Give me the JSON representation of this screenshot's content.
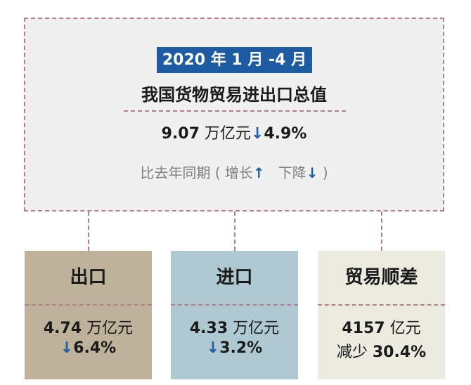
{
  "header": {
    "period": "2020 年 1 月 -4 月",
    "title": "我国货物贸易进出口总值"
  },
  "total": {
    "value": "9.07",
    "unit": "万亿元",
    "arrow": "↓",
    "change": "4.9%"
  },
  "legend": {
    "prefix": "比去年同期",
    "open": "(",
    "increase_label": "增长",
    "increase_arrow": "↑",
    "decrease_label": "下降",
    "decrease_arrow": "↓",
    "close": ")"
  },
  "cards": [
    {
      "title": "出口",
      "value": "4.74",
      "unit": "万亿元",
      "arrow": "↓",
      "change": "6.4%",
      "color": "#bfb29a"
    },
    {
      "title": "进口",
      "value": "4.33",
      "unit": "万亿元",
      "arrow": "↓",
      "change": "3.2%",
      "color": "#aec9d2"
    },
    {
      "title": "贸易顺差",
      "value": "4157",
      "unit": "亿元",
      "change_label": "减少",
      "change": "30.4%",
      "color": "#ebebdf"
    }
  ],
  "colors": {
    "accent_blue": "#1d5ca2",
    "dash_line": "#c07b8a",
    "top_box_bg": "#f0f0f0"
  }
}
